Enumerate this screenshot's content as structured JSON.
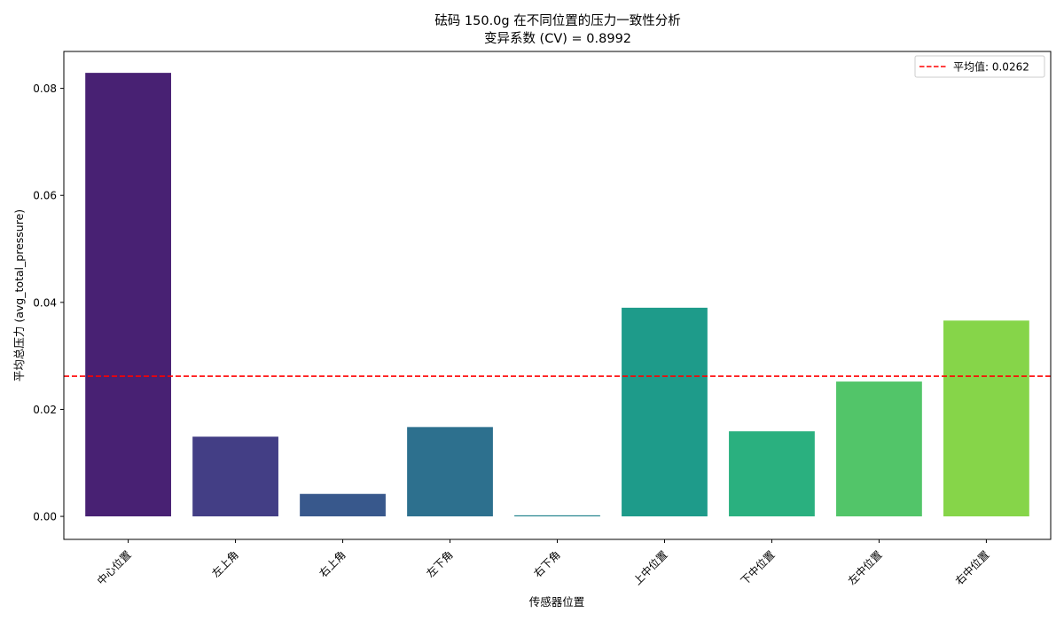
{
  "chart_data": {
    "type": "bar",
    "title": "砝码 150.0g 在不同位置的压力一致性分析",
    "subtitle": "变异系数 (CV) = 0.8992",
    "xlabel": "传感器位置",
    "ylabel": "平均总压力 (avg_total_pressure)",
    "categories": [
      "中心位置",
      "左上角",
      "右上角",
      "左下角",
      "右下角",
      "上中位置",
      "下中位置",
      "左中位置",
      "右中位置"
    ],
    "values": [
      0.0829,
      0.0149,
      0.0042,
      0.0167,
      0.0002,
      0.039,
      0.0159,
      0.0252,
      0.0366
    ],
    "bar_colors": [
      "#482173",
      "#433e85",
      "#38588c",
      "#2d708e",
      "#25858e",
      "#1e9b8a",
      "#2ab07f",
      "#52c569",
      "#86d549"
    ],
    "ylim": [
      -0.0043,
      0.0869
    ],
    "yticks": [
      0.0,
      0.02,
      0.04,
      0.06,
      0.08
    ],
    "ytick_labels": [
      "0.00",
      "0.02",
      "0.04",
      "0.06",
      "0.08"
    ],
    "grid": false,
    "mean_line": {
      "value": 0.0262,
      "color": "#ff0000",
      "label": "平均值: 0.0262",
      "style": "dashed"
    },
    "legend": {
      "placement": "top-right"
    }
  }
}
